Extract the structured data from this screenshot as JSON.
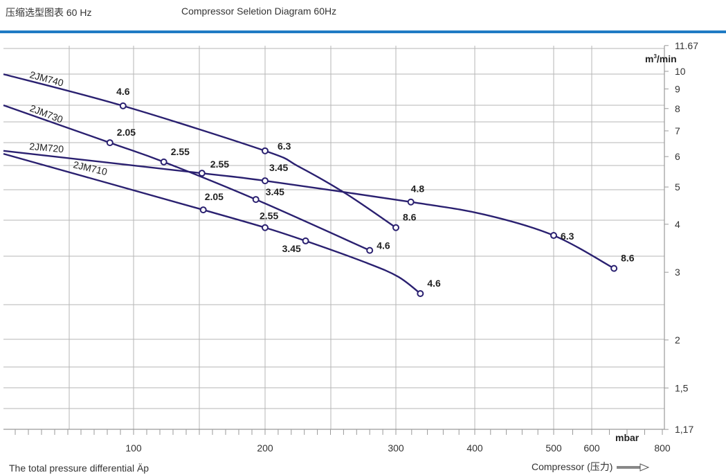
{
  "header": {
    "title_cn": "压缩选型图表 60 Hz",
    "title_en": "Compressor Seletion Diagram 60Hz"
  },
  "footer": {
    "xlabel": "The total pressure differential Äp",
    "compressor_label": "Compressor (压力)"
  },
  "colors": {
    "series": "#2a2070",
    "header_bar": "#1f7bc4",
    "grid": "#b5b5b5"
  },
  "chart_data": {
    "type": "line",
    "title": "Compressor Seletion Diagram 60Hz",
    "xlabel": "The total pressure differential Äp",
    "xunit": "mbar",
    "yunit": "m³/min",
    "yscale": "log",
    "ylim": [
      1.17,
      11.67
    ],
    "xlim": [
      0,
      800
    ],
    "grid": true,
    "x_ticks": [
      100,
      200,
      300,
      400,
      500,
      600,
      800
    ],
    "y_ticks": [
      "11.67",
      "10",
      "9",
      "8",
      "7",
      "6",
      "5",
      "4",
      "3",
      "2",
      "1,5",
      "1,17"
    ],
    "y_tick_values": [
      11.67,
      10,
      9,
      8,
      7,
      6,
      5,
      4,
      3,
      2,
      1.5,
      1.17
    ],
    "series": [
      {
        "name": "2JM740",
        "points": [
          {
            "x": 1,
            "y": 9.83
          },
          {
            "x": 92,
            "y": 8.13,
            "label": "4.6"
          },
          {
            "x": 200,
            "y": 6.21,
            "label": "6.3"
          },
          {
            "x": 225,
            "y": 5.67
          },
          {
            "x": 262,
            "y": 4.8
          },
          {
            "x": 300,
            "y": 3.92,
            "label": "8.6"
          }
        ]
      },
      {
        "name": "2JM730",
        "points": [
          {
            "x": 1,
            "y": 8.16
          },
          {
            "x": 82,
            "y": 6.52,
            "label": "2.05"
          },
          {
            "x": 123,
            "y": 5.81,
            "label": "2.55"
          },
          {
            "x": 193,
            "y": 4.64,
            "label": "3.45"
          },
          {
            "x": 280,
            "y": 3.42,
            "label": "4.6"
          }
        ]
      },
      {
        "name": "2JM720",
        "points": [
          {
            "x": 1,
            "y": 6.21
          },
          {
            "x": 152,
            "y": 5.43,
            "label": "2.55"
          },
          {
            "x": 200,
            "y": 5.19,
            "label": "3.45"
          },
          {
            "x": 319,
            "y": 4.57,
            "label": "4.8"
          },
          {
            "x": 412,
            "y": 4.24
          },
          {
            "x": 500,
            "y": 3.74,
            "label": "6.3"
          },
          {
            "x": 663,
            "y": 3.07,
            "label": "8.6"
          }
        ]
      },
      {
        "name": "2JM710",
        "points": [
          {
            "x": 1,
            "y": 6.1
          },
          {
            "x": 153,
            "y": 4.36,
            "label": "2.05"
          },
          {
            "x": 200,
            "y": 3.92,
            "label": "2.55"
          },
          {
            "x": 231,
            "y": 3.62,
            "label": "3.45"
          },
          {
            "x": 278,
            "y": 3.17
          },
          {
            "x": 303,
            "y": 2.92
          },
          {
            "x": 331,
            "y": 2.64,
            "label": "4.6"
          }
        ]
      }
    ]
  }
}
